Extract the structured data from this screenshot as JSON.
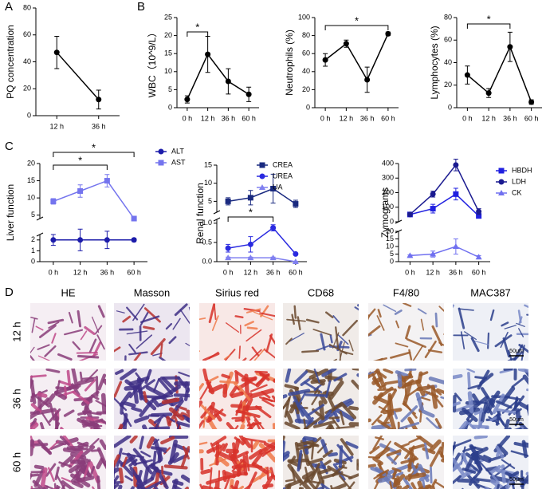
{
  "panels": [
    "A",
    "B",
    "C",
    "D"
  ],
  "chart_data": [
    {
      "type": "line",
      "ylabel": "PQ concentration",
      "categories": [
        "12 h",
        "36 h"
      ],
      "values": [
        47,
        12
      ],
      "errors": [
        12,
        7
      ],
      "color": "#000000",
      "marker": "circle",
      "ylim": [
        0,
        80
      ],
      "yticks": [
        0,
        20,
        40,
        60,
        80
      ]
    },
    {
      "type": "line",
      "ylabel": "WBC（10^9/L）",
      "categories": [
        "0 h",
        "12 h",
        "36 h",
        "60 h"
      ],
      "values": [
        2.3,
        14.8,
        7.3,
        3.7
      ],
      "errors": [
        1,
        5,
        3.5,
        2
      ],
      "color": "#000000",
      "marker": "circle",
      "ylim": [
        0,
        25
      ],
      "yticks": [
        0,
        5,
        10,
        15,
        20,
        25
      ],
      "significance": [
        {
          "between": [
            0,
            1
          ],
          "label": "*"
        }
      ]
    },
    {
      "type": "line",
      "ylabel": "Neutrophils (%)",
      "categories": [
        "0 h",
        "12 h",
        "36 h",
        "60 h"
      ],
      "values": [
        53,
        71,
        31,
        82
      ],
      "errors": [
        7,
        4,
        14,
        2
      ],
      "color": "#000000",
      "marker": "circle",
      "ylim": [
        0,
        100
      ],
      "yticks": [
        0,
        20,
        40,
        60,
        80,
        100
      ],
      "significance": [
        {
          "between": [
            0,
            3
          ],
          "label": "*"
        }
      ]
    },
    {
      "type": "line",
      "ylabel": "Lymphocytes (%)",
      "categories": [
        "0 h",
        "12 h",
        "36 h",
        "60 h"
      ],
      "values": [
        29,
        13,
        54,
        5
      ],
      "errors": [
        8,
        4,
        13,
        2
      ],
      "color": "#000000",
      "marker": "circle",
      "ylim": [
        0,
        80
      ],
      "yticks": [
        0,
        20,
        40,
        60,
        80
      ],
      "significance": [
        {
          "between": [
            0,
            2
          ],
          "label": "*"
        }
      ]
    },
    {
      "type": "line",
      "ylabel": "Liver function",
      "categories": [
        "0 h",
        "12 h",
        "36 h",
        "60 h"
      ],
      "y_segments": [
        {
          "ylim": [
            0,
            2.5
          ],
          "yticks": [
            0,
            1,
            2
          ]
        },
        {
          "ylim": [
            4,
            20
          ],
          "yticks": [
            5,
            10,
            15,
            20
          ]
        }
      ],
      "series": [
        {
          "name": "ALT",
          "color": "#1c1caa",
          "marker": "circle",
          "segment": 0,
          "values": [
            2,
            2,
            2,
            2
          ],
          "errors": [
            0.5,
            1,
            0.8,
            0.15
          ]
        },
        {
          "name": "AST",
          "color": "#7474ee",
          "marker": "square",
          "segment": 1,
          "values": [
            9,
            12,
            15,
            4
          ],
          "errors": [
            0.8,
            1.8,
            1.8,
            0.6
          ]
        }
      ],
      "significance": [
        {
          "between": [
            0,
            2
          ],
          "label": "*"
        },
        {
          "between": [
            0,
            3
          ],
          "label": "*"
        }
      ],
      "legend": "outside right"
    },
    {
      "type": "line",
      "ylabel": "Renal function",
      "categories": [
        "0 h",
        "12 h",
        "36 h",
        "60 h"
      ],
      "y_segments": [
        {
          "ylim": [
            0,
            1.1
          ],
          "yticks": [
            {
              "value": 0,
              "label": "0.0"
            },
            {
              "value": 0.5,
              "label": "0.5"
            },
            {
              "value": 1,
              "label": "1.0"
            }
          ]
        },
        {
          "ylim": [
            2,
            15
          ],
          "yticks": [
            5,
            10,
            15
          ]
        }
      ],
      "series": [
        {
          "name": "CREA",
          "color": "#1a2a80",
          "marker": "square",
          "segment": 1,
          "values": [
            5,
            6,
            8.5,
            4.3
          ],
          "errors": [
            1,
            2,
            4,
            1
          ]
        },
        {
          "name": "UREA",
          "color": "#2a2ae0",
          "marker": "circle",
          "segment": 0,
          "values": [
            0.35,
            0.45,
            0.88,
            0.2
          ],
          "errors": [
            0.1,
            0.2,
            0.08,
            0.02
          ]
        },
        {
          "name": "UA",
          "color": "#8080f0",
          "marker": "triangle",
          "segment": 0,
          "values": [
            0.1,
            0.1,
            0.1,
            0
          ],
          "errors": [
            0.02,
            0.02,
            0.02,
            0.01
          ]
        }
      ],
      "significance": [
        {
          "between": [
            0,
            2
          ],
          "label": "*"
        }
      ],
      "legend": "upper right"
    },
    {
      "type": "line",
      "ylabel": "Zymograms",
      "categories": [
        "0 h",
        "12 h",
        "36 h",
        "60 h"
      ],
      "y_segments": [
        {
          "ylim": [
            0,
            20
          ],
          "yticks": [
            0,
            5,
            10,
            15,
            20
          ]
        },
        {
          "ylim": [
            0,
            400
          ],
          "yticks": [
            0,
            100,
            200,
            300,
            400
          ]
        }
      ],
      "series": [
        {
          "name": "HBDH",
          "color": "#2020e0",
          "marker": "square",
          "segment": 1,
          "values": [
            50,
            90,
            190,
            40
          ],
          "errors": [
            10,
            30,
            40,
            15
          ]
        },
        {
          "name": "LDH",
          "color": "#1a1a90",
          "marker": "circle",
          "segment": 1,
          "values": [
            50,
            190,
            390,
            70
          ],
          "errors": [
            10,
            20,
            40,
            20
          ]
        },
        {
          "name": "CK",
          "color": "#7070f0",
          "marker": "triangle",
          "segment": 0,
          "values": [
            4,
            5,
            10,
            3
          ],
          "errors": [
            0.5,
            2,
            5,
            1
          ]
        }
      ],
      "legend": "outside right"
    }
  ],
  "histology": {
    "columns": [
      "HE",
      "Masson",
      "Sirius red",
      "CD68",
      "F4/80",
      "MAC387"
    ],
    "rows": [
      "12 h",
      "36 h",
      "60 h"
    ],
    "scale_bar": "50μm"
  }
}
